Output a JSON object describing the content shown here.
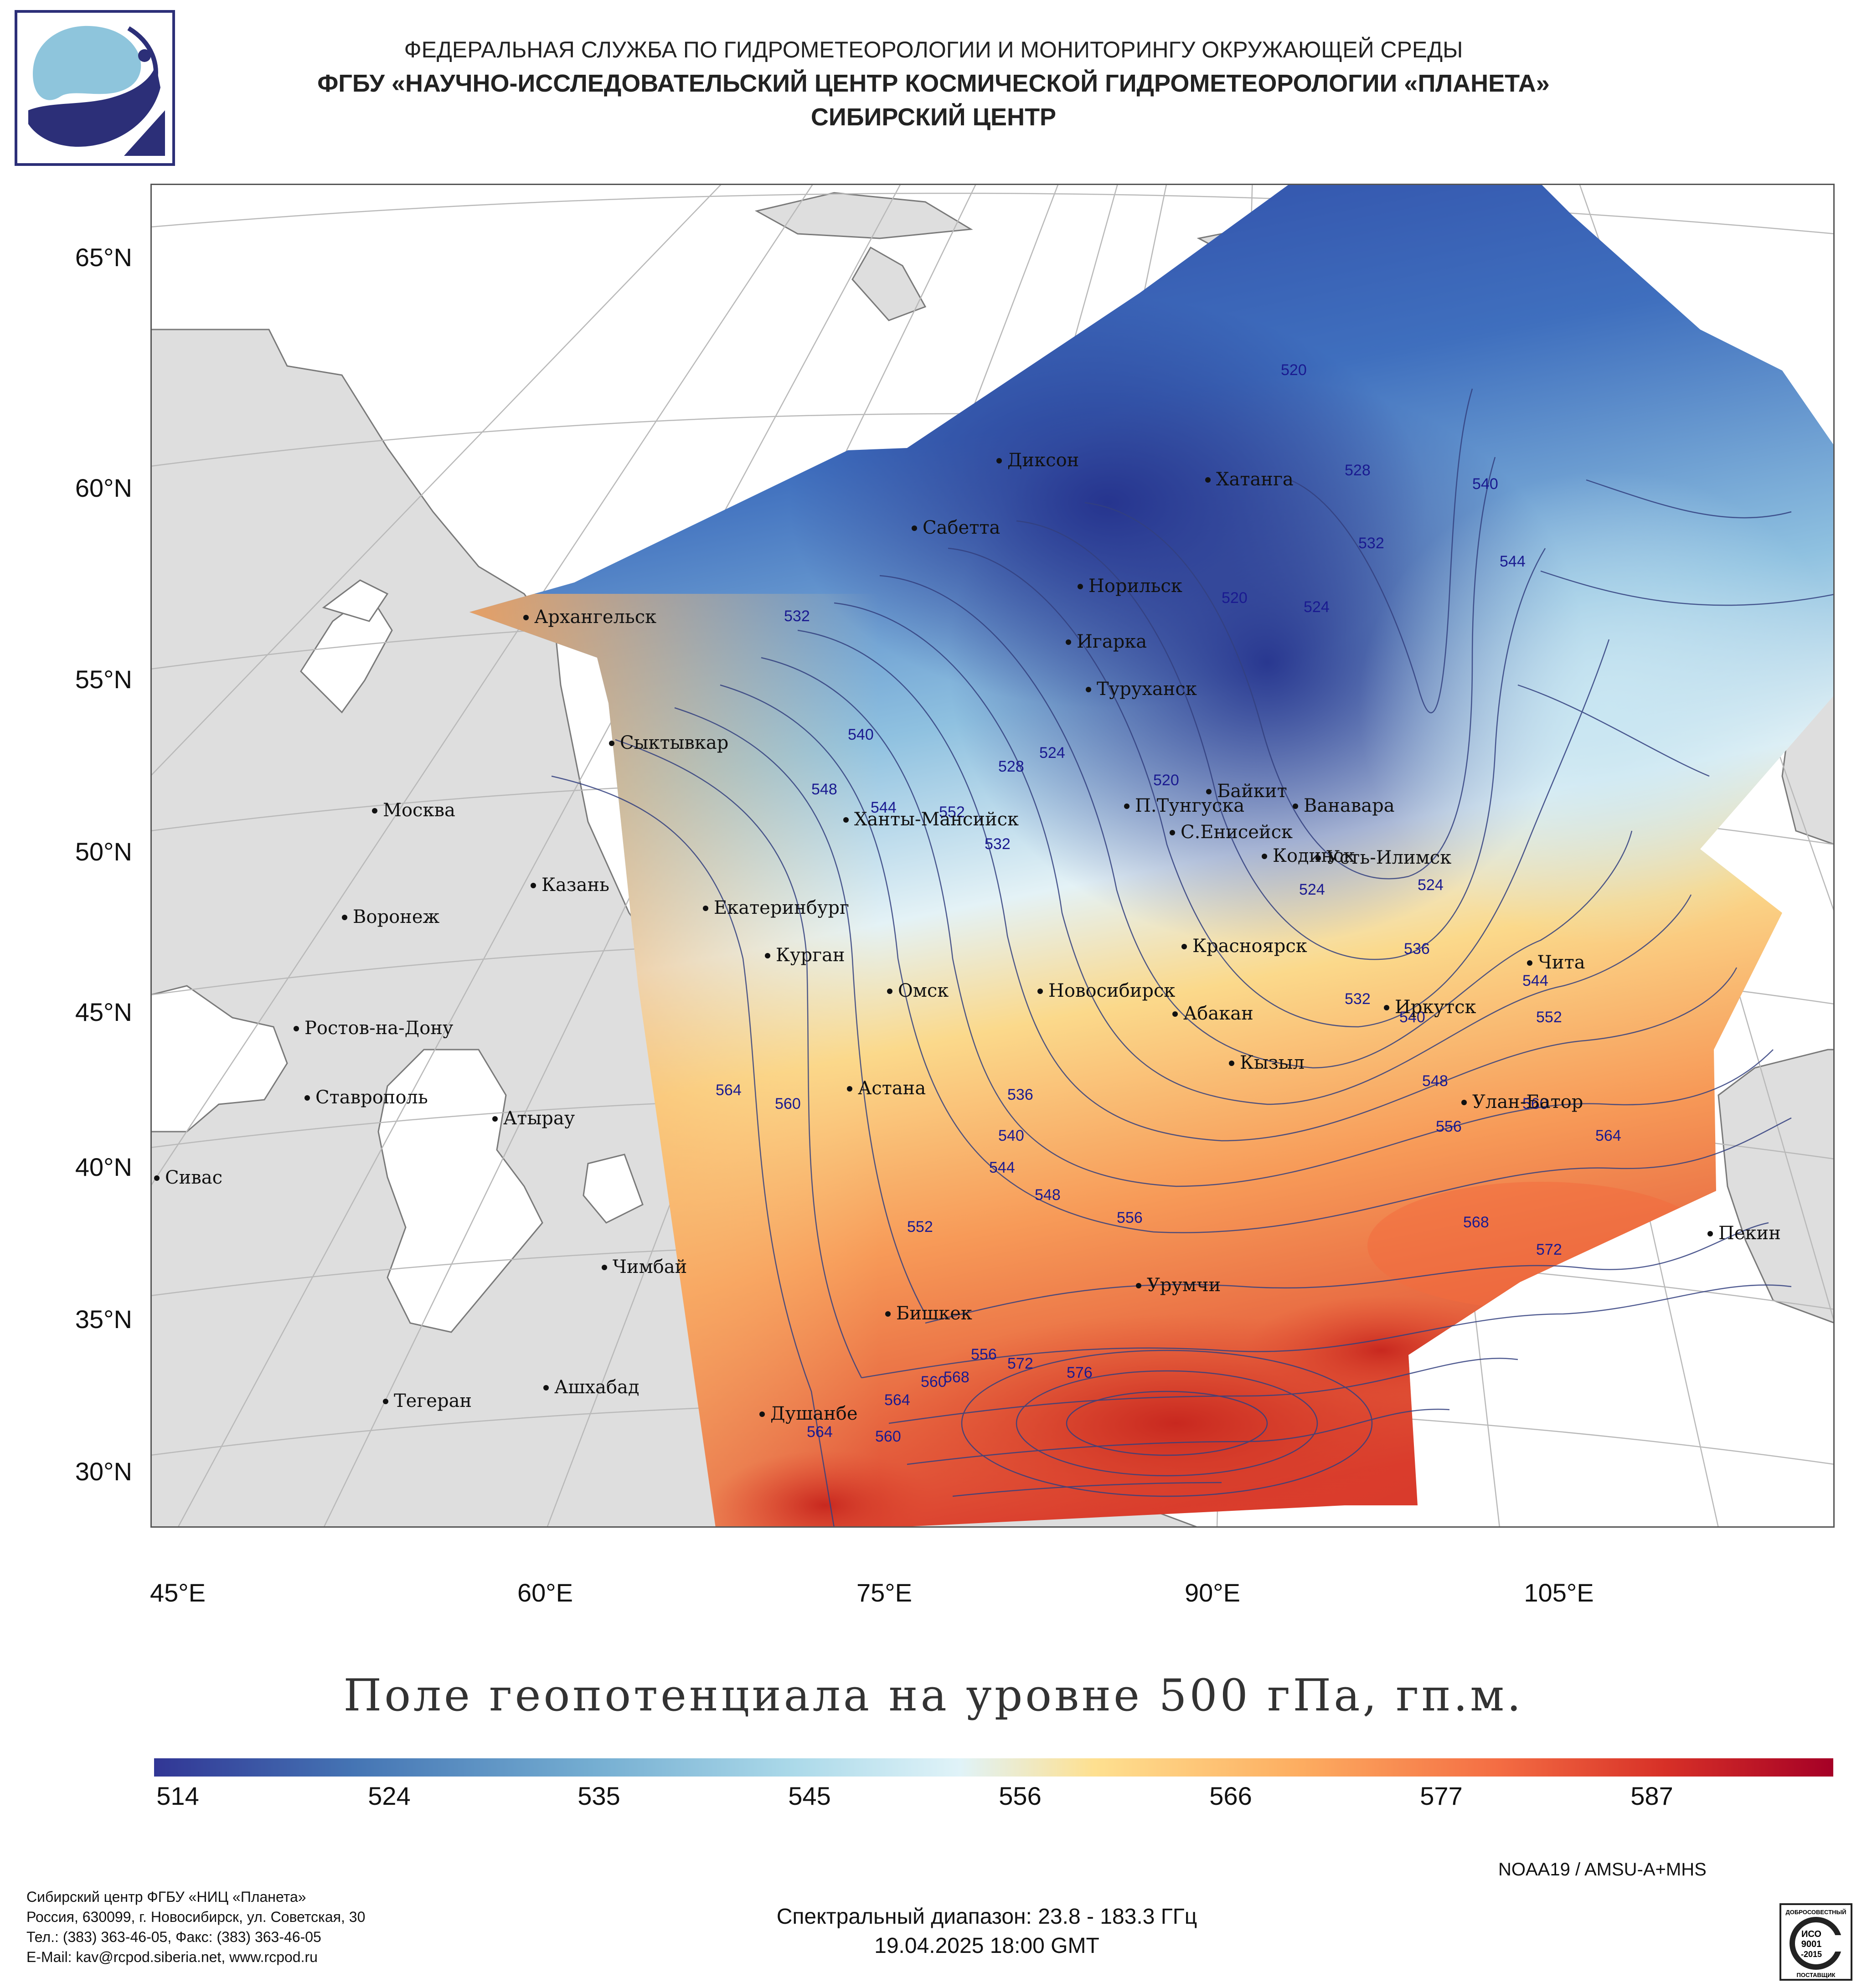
{
  "header": {
    "line1": "ФЕДЕРАЛЬНАЯ СЛУЖБА ПО ГИДРОМЕТЕОРОЛОГИИ И МОНИТОРИНГУ ОКРУЖАЮЩЕЙ СРЕДЫ",
    "line2": "ФГБУ «НАУЧНО-ИССЛЕДОВАТЕЛЬСКИЙ ЦЕНТР КОСМИЧЕСКОЙ ГИДРОМЕТЕОРОЛОГИИ «ПЛАНЕТА»",
    "line3": "СИБИРСКИЙ ЦЕНТР"
  },
  "map": {
    "lat_labels": [
      "65°N",
      "60°N",
      "55°N",
      "50°N",
      "45°N",
      "40°N",
      "35°N",
      "30°N"
    ],
    "lon_labels": [
      "45°E",
      "60°E",
      "75°E",
      "90°E",
      "105°E"
    ],
    "cities": [
      "Диксон",
      "Хатанга",
      "Сабетта",
      "Норильск",
      "Архангельск",
      "Игарка",
      "Туруханск",
      "Сыктывкар",
      "Байкит",
      "П.Тунгуска",
      "Ванавара",
      "Москва",
      "Ханты-Мансийск",
      "С.Енисейск",
      "Кодинск",
      "Усть-Илимск",
      "Казань",
      "Екатеринбург",
      "Воронеж",
      "Красноярск",
      "Курган",
      "Чита",
      "Омск",
      "Новосибирск",
      "Иркутск",
      "Ростов-на-Дону",
      "Абакан",
      "Кызыл",
      "Ставрополь",
      "Астана",
      "Улан-Батор",
      "Атырау",
      "Сивас",
      "Пекин",
      "Чимбай",
      "Урумчи",
      "Бишкек",
      "Ашхабад",
      "Тегеран",
      "Душанбе"
    ],
    "contour_labels": [
      "520",
      "528",
      "540",
      "544",
      "532",
      "524",
      "532",
      "520",
      "524",
      "540",
      "548",
      "544",
      "528",
      "524",
      "552",
      "532",
      "520",
      "524",
      "536",
      "544",
      "552",
      "532",
      "540",
      "548",
      "556",
      "564",
      "560",
      "536",
      "540",
      "544",
      "548",
      "552",
      "556",
      "560",
      "564",
      "568",
      "572",
      "556",
      "568",
      "572",
      "576",
      "560",
      "564",
      "564",
      "560"
    ]
  },
  "title": "Поле геопотенциала на уровне 500 гПа, гп.м.",
  "colorbar": {
    "labels": [
      "514",
      "524",
      "535",
      "545",
      "556",
      "566",
      "577",
      "587"
    ],
    "colors": [
      "#313695",
      "#4575b4",
      "#74add1",
      "#abd9e9",
      "#e0f3f8",
      "#fee090",
      "#fdae61",
      "#f46d43",
      "#d73027",
      "#a50026"
    ]
  },
  "footer": {
    "satellite": "NOAA19 / AMSU-A+MHS",
    "spectral": "Спектральный диапазон: 23.8 - 183.3 ГГц",
    "datetime": "19.04.2025 18:00 GMT",
    "org": "Сибирский центр ФГБУ «НИЦ «Планета»",
    "address": "Россия, 630099, г. Новосибирск, ул. Советская, 30",
    "phone": "Тел.: (383) 363-46-05, Факс: (383) 363-46-05",
    "email": "E-Mail: kav@rcpod.siberia.net, www.rcpod.ru",
    "iso_top": "ДОБРОСОВЕСТНЫЙ",
    "iso_mid1": "ИСО",
    "iso_mid2": "9001",
    "iso_mid3": "-2015",
    "iso_bottom": "ПОСТАВЩИК"
  }
}
